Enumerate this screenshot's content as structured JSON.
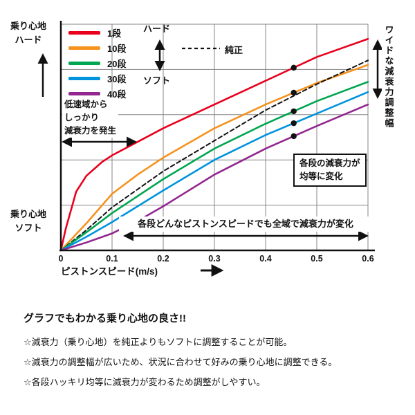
{
  "chart_data": {
    "type": "line",
    "title": "",
    "xlabel": "ピストンスピード(m/s)",
    "ylabel": "",
    "xlim": [
      0,
      0.6
    ],
    "ylim": [
      0,
      1
    ],
    "xticks": [
      0,
      0.1,
      0.2,
      0.3,
      0.4,
      0.5,
      0.6
    ],
    "xtick_labels": [
      "0",
      "0.1",
      "0.2",
      "0.3",
      "0.4",
      "0.5",
      "0.6"
    ],
    "ygrid": [
      0.2,
      0.4,
      0.6,
      0.8,
      1.0
    ],
    "grid": true,
    "legend_position": "top-left",
    "marker_x": 0.455,
    "series": [
      {
        "name": "1段",
        "color": "#e8001c",
        "dashed": false,
        "marker": true,
        "x": [
          0,
          0.01,
          0.03,
          0.05,
          0.08,
          0.1,
          0.15,
          0.2,
          0.3,
          0.4,
          0.5,
          0.6
        ],
        "y": [
          0,
          0.1,
          0.26,
          0.33,
          0.39,
          0.42,
          0.48,
          0.54,
          0.645,
          0.75,
          0.855,
          0.935
        ]
      },
      {
        "name": "10段",
        "color": "#f6921e",
        "dashed": false,
        "marker": true,
        "x": [
          0,
          0.05,
          0.1,
          0.15,
          0.2,
          0.3,
          0.4,
          0.5,
          0.6
        ],
        "y": [
          0,
          0.12,
          0.25,
          0.335,
          0.41,
          0.54,
          0.645,
          0.74,
          0.82
        ]
      },
      {
        "name": "純正",
        "color": "#111111",
        "dashed": true,
        "marker": false,
        "x": [
          0,
          0.05,
          0.1,
          0.2,
          0.3,
          0.4,
          0.5,
          0.6
        ],
        "y": [
          0,
          0.09,
          0.19,
          0.35,
          0.485,
          0.62,
          0.735,
          0.84
        ]
      },
      {
        "name": "20段",
        "color": "#00a650",
        "dashed": false,
        "marker": true,
        "x": [
          0,
          0.05,
          0.1,
          0.2,
          0.3,
          0.4,
          0.5,
          0.6
        ],
        "y": [
          0,
          0.08,
          0.165,
          0.315,
          0.45,
          0.56,
          0.66,
          0.745
        ]
      },
      {
        "name": "30段",
        "color": "#0093dd",
        "dashed": false,
        "marker": true,
        "x": [
          0,
          0.05,
          0.1,
          0.2,
          0.3,
          0.4,
          0.5,
          0.6
        ],
        "y": [
          0,
          0.06,
          0.125,
          0.265,
          0.4,
          0.51,
          0.605,
          0.7
        ]
      },
      {
        "name": "40段",
        "color": "#92278f",
        "dashed": false,
        "marker": true,
        "x": [
          0,
          0.05,
          0.1,
          0.15,
          0.2,
          0.3,
          0.4,
          0.5,
          0.6
        ],
        "y": [
          0,
          0.035,
          0.075,
          0.13,
          0.195,
          0.335,
          0.45,
          0.55,
          0.645
        ]
      }
    ]
  },
  "axis": {
    "y_top_line1": "乗り心地",
    "y_top_line2": "ハード",
    "y_bottom_line1": "乗り心地",
    "y_bottom_line2": "ソフト",
    "x_label": "ピストンスピード(m/s)"
  },
  "legend": {
    "items": [
      {
        "label": "1段",
        "color": "#e8001c"
      },
      {
        "label": "10段",
        "color": "#f6921e"
      },
      {
        "label": "20段",
        "color": "#00a650"
      },
      {
        "label": "30段",
        "color": "#0093dd"
      },
      {
        "label": "40段",
        "color": "#92278f"
      }
    ],
    "hard_label": "ハード",
    "soft_label": "ソフト",
    "stock_label": "純正"
  },
  "annotations": {
    "low_speed_line1": "低速域から",
    "low_speed_line2": "しっかり",
    "low_speed_line3": "減衰力を発生",
    "equal_line1": "各段の減衰力が",
    "equal_line2": "均等に変化",
    "full_range": "各段どんなピストンスピードでも全域で減衰力が変化",
    "wide_range": "ワイドな減衰力調整幅"
  },
  "description": {
    "title": "グラフでもわかる乗り心地の良さ!!",
    "bullets": [
      "☆減衰力（乗り心地）を純正よりもソフトに調整することが可能。",
      "☆減衰力の調整幅が広いため、状況に合わせて好みの乗り心地に調整できる。",
      "☆各段ハッキリ均等に減衰力が変わるため調整がしやすい。"
    ]
  }
}
